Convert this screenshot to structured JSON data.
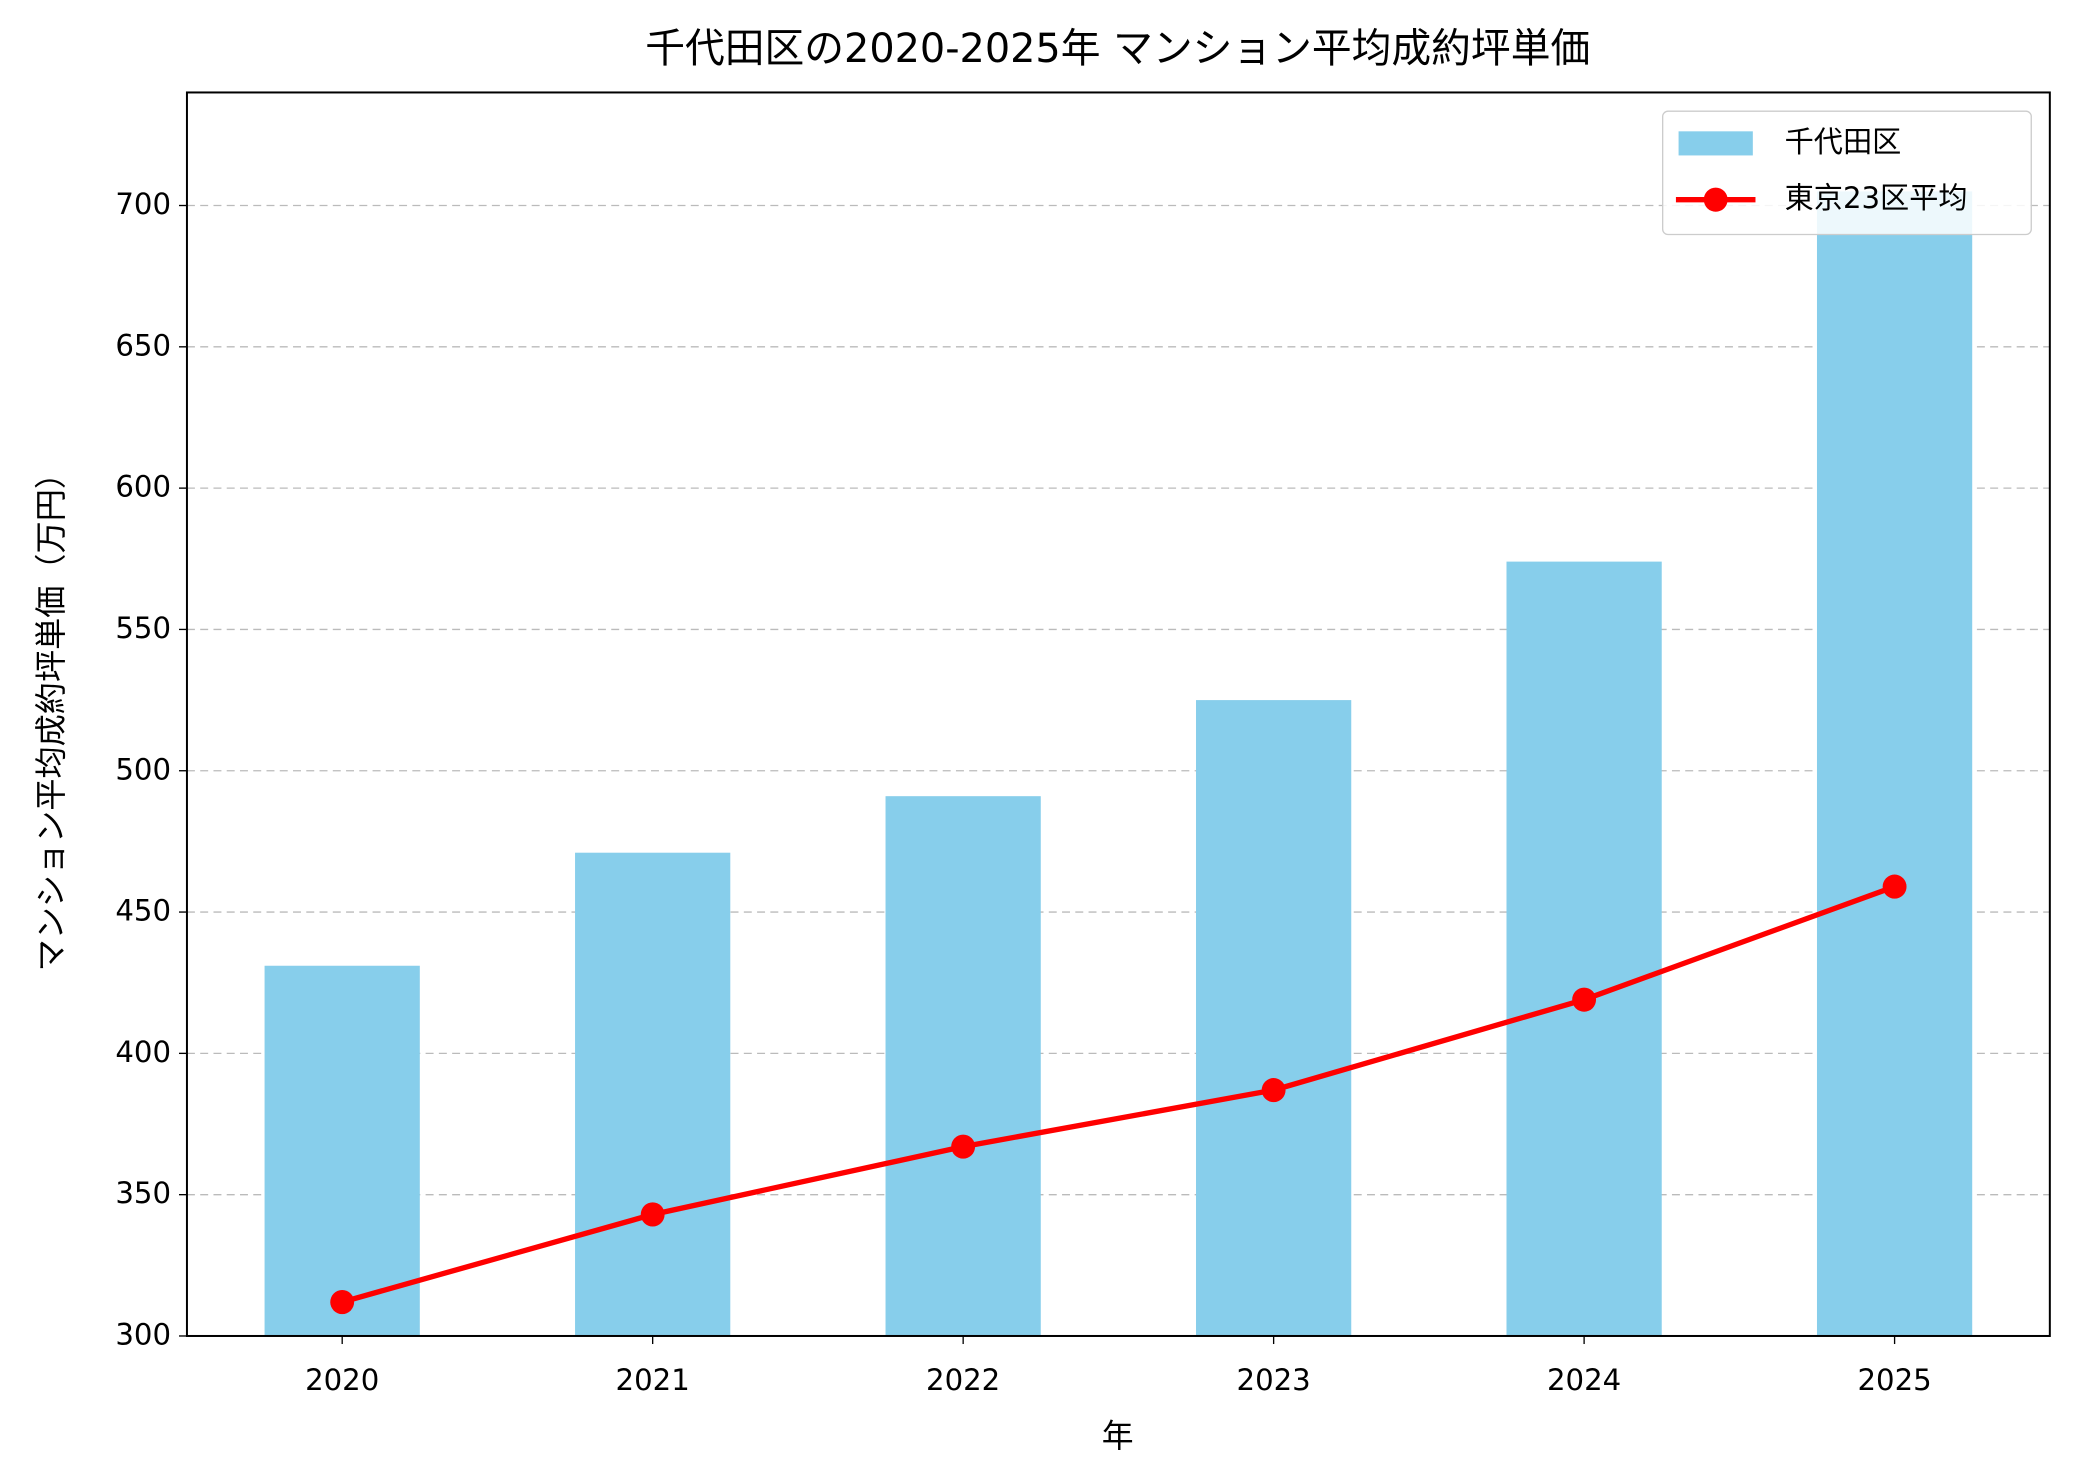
{
  "chart_data": {
    "type": "bar_line",
    "title": "千代田区の2020-2025年 マンション平均成約坪単価",
    "x_label": "年",
    "y_label": "マンション平均成約坪単価（万円）",
    "categories": [
      "2020",
      "2021",
      "2022",
      "2023",
      "2024",
      "2025"
    ],
    "series": [
      {
        "name": "千代田区",
        "type": "bar",
        "color": "#87ceeb",
        "values": [
          431,
          471,
          491,
          525,
          574,
          705
        ]
      },
      {
        "name": "東京23区平均",
        "type": "line",
        "color": "#ff0000",
        "values": [
          312,
          343,
          367,
          387,
          419,
          459
        ]
      }
    ],
    "ylim": [
      300,
      740
    ],
    "yticks": [
      300,
      350,
      400,
      450,
      500,
      550,
      600,
      650,
      700
    ],
    "grid": true,
    "legend": "upper right"
  }
}
